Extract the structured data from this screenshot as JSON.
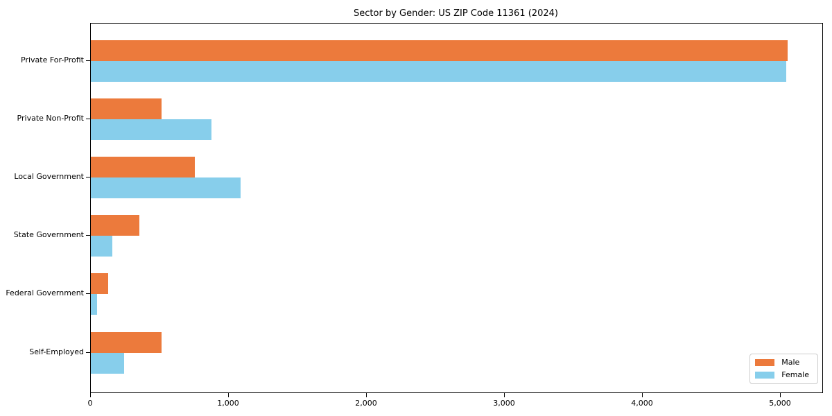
{
  "chart_data": {
    "type": "bar",
    "orientation": "horizontal",
    "title": "Sector by Gender: US ZIP Code 11361 (2024)",
    "categories": [
      "Private For-Profit",
      "Private Non-Profit",
      "Local Government",
      "State Government",
      "Federal Government",
      "Self-Employed"
    ],
    "series": [
      {
        "name": "Male",
        "color": "#ec7a3c",
        "values": [
          5050,
          510,
          755,
          350,
          125,
          510
        ]
      },
      {
        "name": "Female",
        "color": "#87ceeb",
        "values": [
          5040,
          875,
          1085,
          155,
          45,
          240
        ]
      }
    ],
    "xlabel": "",
    "ylabel": "",
    "xlim": [
      0,
      5300
    ],
    "x_ticks": [
      0,
      1000,
      2000,
      3000,
      4000,
      5000
    ],
    "x_tick_labels": [
      "0",
      "1,000",
      "2,000",
      "3,000",
      "4,000",
      "5,000"
    ],
    "grid": false,
    "legend_position": "lower right",
    "background_color": "#ffffff",
    "text_color": "#000000"
  }
}
